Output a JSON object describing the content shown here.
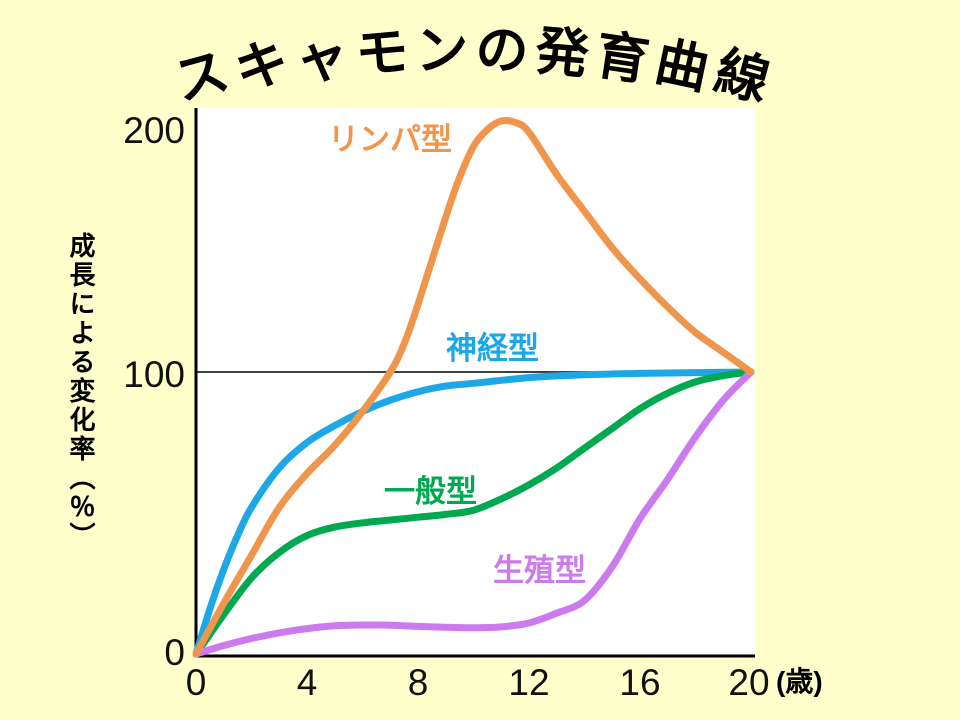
{
  "page": {
    "background_color": "#FFFFCC",
    "plot_background": "#FFFFFF"
  },
  "title": {
    "text": "スキャモンの発育曲線"
  },
  "y_axis": {
    "label": "成長による変化率（％）",
    "ticks": [
      "200",
      "100",
      "0"
    ]
  },
  "x_axis": {
    "ticks": [
      "0",
      "4",
      "8",
      "12",
      "16",
      "20"
    ],
    "unit_label": "(歳)"
  },
  "chart_data": {
    "type": "line",
    "title": "スキャモンの発育曲線",
    "xlabel": "(歳)",
    "ylabel": "成長による変化率（％）",
    "xlim": [
      0,
      20
    ],
    "ylim": [
      0,
      200
    ],
    "x_ticks": [
      0,
      4,
      8,
      12,
      16,
      20
    ],
    "y_ticks": [
      0,
      100,
      200
    ],
    "reference_line_y": 100,
    "grid": false,
    "legend_position": "inline-labels",
    "axis_color": "#000000",
    "reference_line_color": "#404040",
    "series": [
      {
        "name": "リンパ型",
        "color": "#F0964C",
        "points": [
          [
            0,
            0
          ],
          [
            1,
            18
          ],
          [
            2,
            35
          ],
          [
            3,
            52
          ],
          [
            4,
            64
          ],
          [
            5,
            74
          ],
          [
            6,
            86
          ],
          [
            7,
            100
          ],
          [
            7.5,
            110
          ],
          [
            8,
            124
          ],
          [
            9,
            155
          ],
          [
            9.5,
            169
          ],
          [
            10,
            180
          ],
          [
            10.5,
            186
          ],
          [
            11,
            189
          ],
          [
            11.5,
            188.5
          ],
          [
            12,
            185
          ],
          [
            13,
            170
          ],
          [
            14,
            157
          ],
          [
            15,
            144
          ],
          [
            16,
            133
          ],
          [
            17,
            123
          ],
          [
            18,
            114
          ],
          [
            19,
            107
          ],
          [
            20,
            100
          ]
        ]
      },
      {
        "name": "神経型",
        "color": "#1EA7E6",
        "points": [
          [
            0,
            0
          ],
          [
            0.5,
            16
          ],
          [
            1,
            30
          ],
          [
            1.5,
            42
          ],
          [
            2,
            52
          ],
          [
            3,
            66
          ],
          [
            4,
            75
          ],
          [
            5,
            81
          ],
          [
            6,
            86
          ],
          [
            7,
            90
          ],
          [
            8,
            93
          ],
          [
            9,
            95
          ],
          [
            10,
            96
          ],
          [
            12,
            98
          ],
          [
            14,
            99
          ],
          [
            16,
            99.5
          ],
          [
            18,
            99.8
          ],
          [
            20,
            100
          ]
        ]
      },
      {
        "name": "一般型",
        "color": "#00A94F",
        "points": [
          [
            0,
            0
          ],
          [
            0.5,
            7
          ],
          [
            1,
            14
          ],
          [
            2,
            27
          ],
          [
            3,
            36
          ],
          [
            4,
            42
          ],
          [
            5,
            45
          ],
          [
            6,
            46.5
          ],
          [
            7,
            47.5
          ],
          [
            8,
            48.5
          ],
          [
            9,
            49.5
          ],
          [
            10,
            51
          ],
          [
            11,
            55
          ],
          [
            12,
            60
          ],
          [
            13,
            66
          ],
          [
            14,
            73
          ],
          [
            15,
            80
          ],
          [
            16,
            87
          ],
          [
            17,
            92.5
          ],
          [
            18,
            96.5
          ],
          [
            19,
            98.7
          ],
          [
            20,
            100
          ]
        ]
      },
      {
        "name": "生殖型",
        "color": "#CC7BEE",
        "points": [
          [
            0,
            0
          ],
          [
            1,
            3
          ],
          [
            2,
            5.5
          ],
          [
            3,
            7.5
          ],
          [
            4,
            9
          ],
          [
            5,
            10
          ],
          [
            6,
            10.3
          ],
          [
            7,
            10.2
          ],
          [
            8,
            9.8
          ],
          [
            9,
            9.5
          ],
          [
            10,
            9.3
          ],
          [
            11,
            9.6
          ],
          [
            12,
            11
          ],
          [
            13,
            14.5
          ],
          [
            14,
            19
          ],
          [
            15,
            31
          ],
          [
            16,
            48
          ],
          [
            17,
            62
          ],
          [
            18,
            77
          ],
          [
            19,
            90
          ],
          [
            20,
            100
          ]
        ]
      }
    ]
  }
}
